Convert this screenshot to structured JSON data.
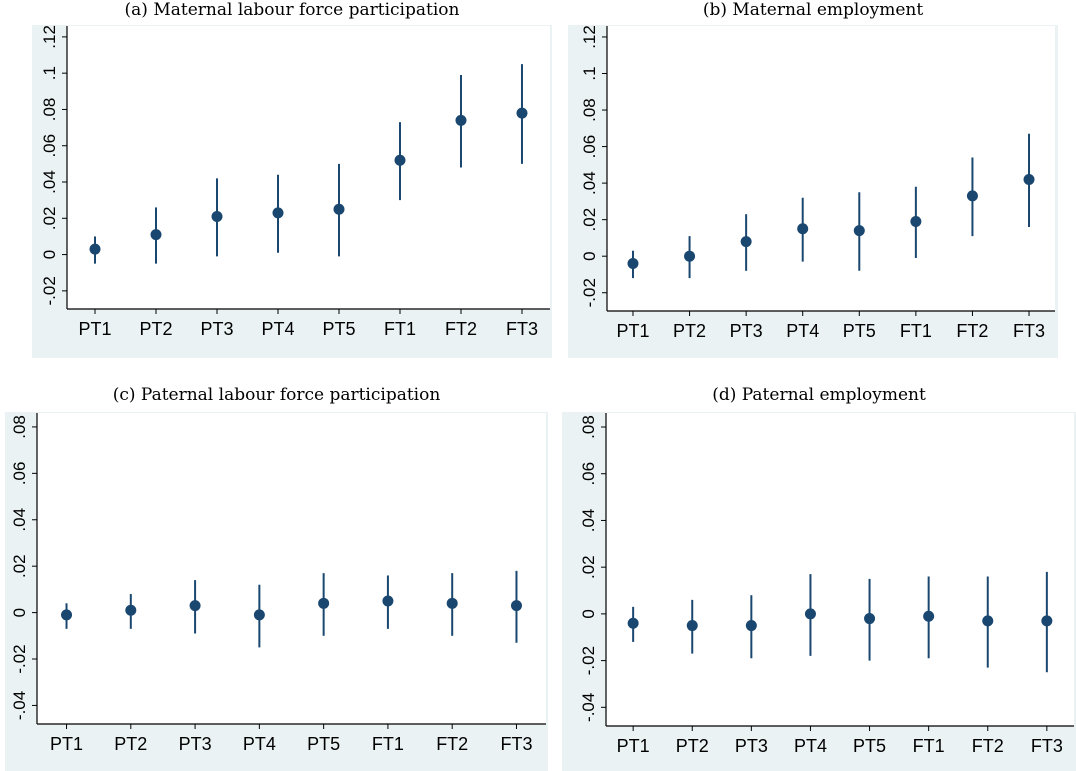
{
  "colors": {
    "background": "#eaf2f3",
    "plot_bg": "#ffffff",
    "marker": "#1a476f",
    "axis": "#000000"
  },
  "chart_data": [
    {
      "type": "scatter",
      "title": "(a) Maternal labour force participation",
      "categories": [
        "PT1",
        "PT2",
        "PT3",
        "PT4",
        "PT5",
        "FT1",
        "FT2",
        "FT3"
      ],
      "values": [
        0.003,
        0.011,
        0.021,
        0.023,
        0.025,
        0.052,
        0.074,
        0.078
      ],
      "ci_low": [
        -0.005,
        -0.005,
        -0.001,
        0.001,
        -0.001,
        0.03,
        0.048,
        0.05
      ],
      "ci_high": [
        0.01,
        0.026,
        0.042,
        0.044,
        0.05,
        0.073,
        0.099,
        0.105
      ],
      "ylim": [
        -0.03,
        0.126
      ],
      "yticks": [
        -0.02,
        0,
        0.02,
        0.04,
        0.06,
        0.08,
        0.1,
        0.12
      ],
      "ytick_labels": [
        "-.02",
        "0",
        ".02",
        ".04",
        ".06",
        ".08",
        ".1",
        ".12"
      ],
      "grid": false
    },
    {
      "type": "scatter",
      "title": "(b) Maternal employment",
      "categories": [
        "PT1",
        "PT2",
        "PT3",
        "PT4",
        "PT5",
        "FT1",
        "FT2",
        "FT3"
      ],
      "values": [
        -0.004,
        0.0,
        0.008,
        0.015,
        0.014,
        0.019,
        0.033,
        0.042
      ],
      "ci_low": [
        -0.012,
        -0.012,
        -0.008,
        -0.003,
        -0.008,
        -0.001,
        0.011,
        0.016
      ],
      "ci_high": [
        0.003,
        0.011,
        0.023,
        0.032,
        0.035,
        0.038,
        0.054,
        0.067
      ],
      "ylim": [
        -0.03,
        0.126
      ],
      "yticks": [
        -0.02,
        0,
        0.02,
        0.04,
        0.06,
        0.08,
        0.1,
        0.12
      ],
      "ytick_labels": [
        "-.02",
        "0",
        ".02",
        ".04",
        ".06",
        ".08",
        ".1",
        ".12"
      ],
      "grid": false
    },
    {
      "type": "scatter",
      "title": "(c) Paternal labour force participation",
      "categories": [
        "PT1",
        "PT2",
        "PT3",
        "PT4",
        "PT5",
        "FT1",
        "FT2",
        "FT3"
      ],
      "values": [
        -0.001,
        0.001,
        0.003,
        -0.001,
        0.004,
        0.005,
        0.004,
        0.003
      ],
      "ci_low": [
        -0.007,
        -0.007,
        -0.009,
        -0.015,
        -0.01,
        -0.007,
        -0.01,
        -0.013
      ],
      "ci_high": [
        0.004,
        0.008,
        0.014,
        0.012,
        0.017,
        0.016,
        0.017,
        0.018
      ],
      "ylim": [
        -0.048,
        0.086
      ],
      "yticks": [
        -0.04,
        -0.02,
        0,
        0.02,
        0.04,
        0.06,
        0.08
      ],
      "ytick_labels": [
        "-.04",
        "-.02",
        "0",
        ".02",
        ".04",
        ".06",
        ".08"
      ],
      "grid": false
    },
    {
      "type": "scatter",
      "title": "(d) Paternal employment",
      "categories": [
        "PT1",
        "PT2",
        "PT3",
        "PT4",
        "PT5",
        "FT1",
        "FT2",
        "FT3"
      ],
      "values": [
        -0.004,
        -0.005,
        -0.005,
        0.0,
        -0.002,
        -0.001,
        -0.003,
        -0.003
      ],
      "ci_low": [
        -0.012,
        -0.017,
        -0.019,
        -0.018,
        -0.02,
        -0.019,
        -0.023,
        -0.025
      ],
      "ci_high": [
        0.003,
        0.006,
        0.008,
        0.017,
        0.015,
        0.016,
        0.016,
        0.018
      ],
      "ylim": [
        -0.048,
        0.086
      ],
      "yticks": [
        -0.04,
        -0.02,
        0,
        0.02,
        0.04,
        0.06,
        0.08
      ],
      "ytick_labels": [
        "-.04",
        "-.02",
        "0",
        ".02",
        ".04",
        ".06",
        ".08"
      ],
      "grid": false
    }
  ]
}
